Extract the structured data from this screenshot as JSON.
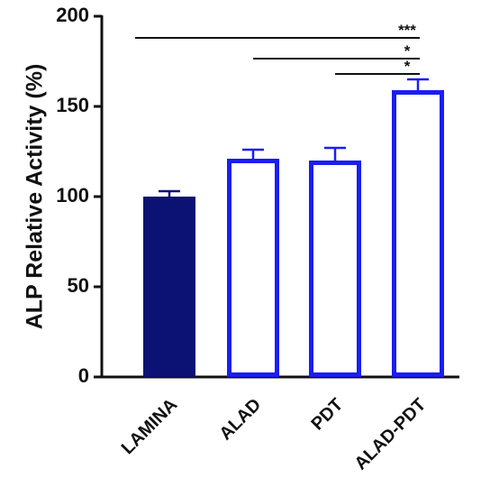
{
  "chart_data": {
    "type": "bar",
    "y_label": "ALP Relative Activity (%)",
    "categories": [
      "LAMINA",
      "ALAD",
      "PDT",
      "ALAD-PDT"
    ],
    "values": [
      100,
      121,
      120,
      159
    ],
    "errors": [
      3,
      5,
      7,
      6
    ],
    "fills": [
      "#0c1273",
      "#ffffff",
      "#ffffff",
      "#ffffff"
    ],
    "colors": [
      "#0c1273",
      "#1a1ef0",
      "#1a1ef0",
      "#1a1ef0"
    ],
    "ylim": [
      0,
      200
    ],
    "yticks": [
      0,
      50,
      100,
      150,
      200
    ],
    "comparisons": [
      {
        "groups": [
          "LAMINA",
          "ALAD-PDT"
        ],
        "label": "***"
      },
      {
        "groups": [
          "ALAD",
          "ALAD-PDT"
        ],
        "label": "*"
      },
      {
        "groups": [
          "PDT",
          "ALAD-PDT"
        ],
        "label": "*"
      }
    ]
  }
}
